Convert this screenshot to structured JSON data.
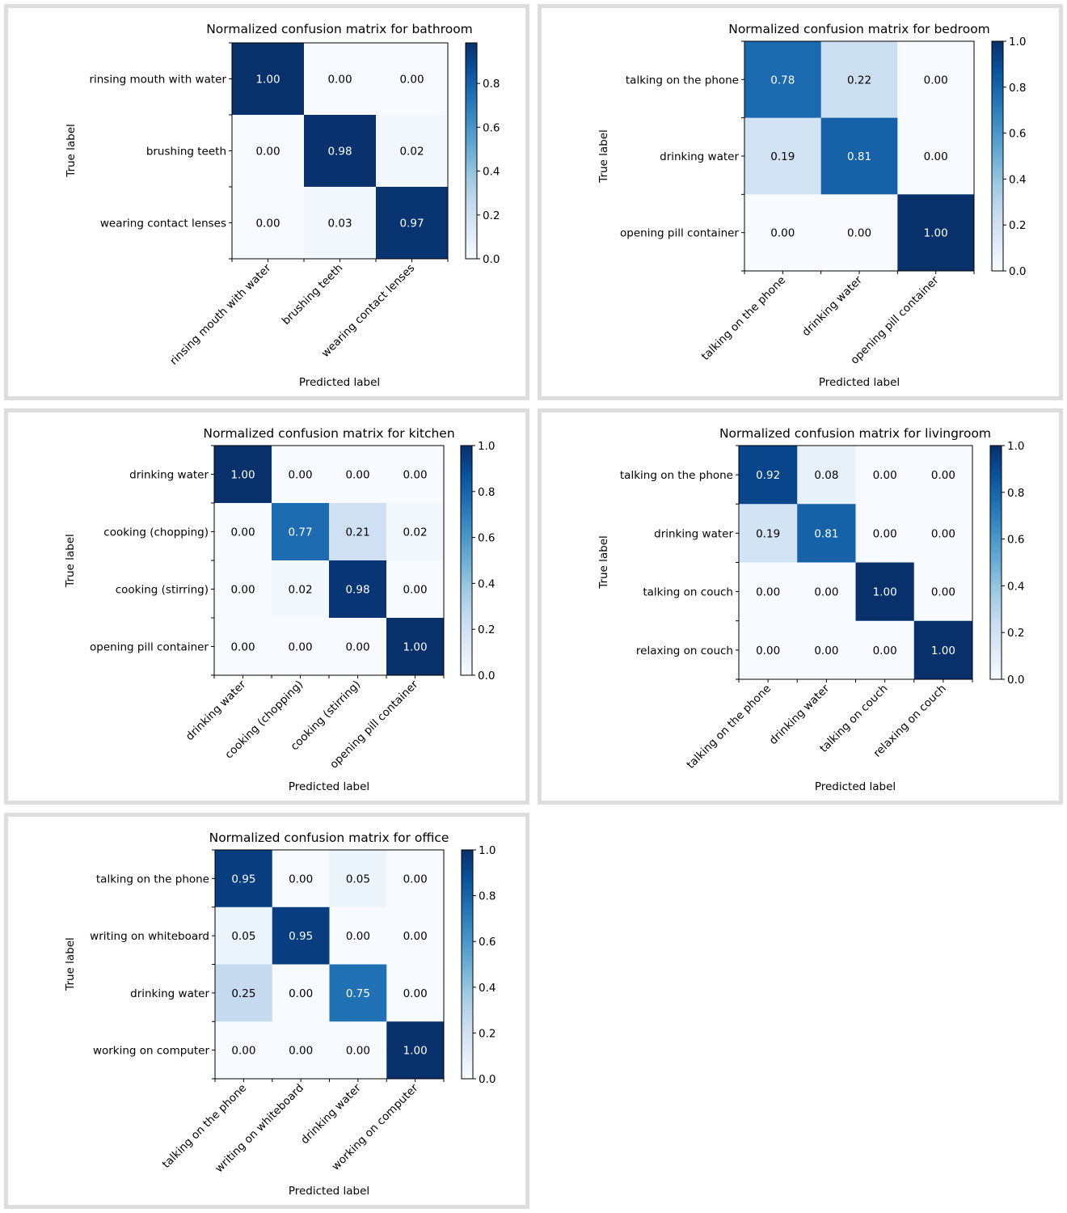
{
  "colorbar_ticks": [
    "0.0",
    "0.2",
    "0.4",
    "0.6",
    "0.8",
    "1.0"
  ],
  "colormap": [
    "#f7fbff",
    "#deebf7",
    "#c6dbef",
    "#9ecae1",
    "#6baed6",
    "#4292c6",
    "#2171b5",
    "#08519c",
    "#08306b"
  ],
  "chart_data": [
    {
      "type": "heatmap",
      "title": "Normalized confusion matrix for bathroom",
      "xlabel": "Predicted label",
      "ylabel": "True label",
      "classes": [
        "rinsing mouth with water",
        "brushing teeth",
        "wearing contact lenses"
      ],
      "values": [
        [
          1.0,
          0.0,
          0.0
        ],
        [
          0.0,
          0.98,
          0.02
        ],
        [
          0.0,
          0.03,
          0.97
        ]
      ],
      "labels": [
        [
          "1.00",
          "0.00",
          "0.00"
        ],
        [
          "0.00",
          "0.98",
          "0.02"
        ],
        [
          "0.00",
          "0.03",
          "0.97"
        ]
      ],
      "colorbar_range": [
        0,
        0.985
      ]
    },
    {
      "type": "heatmap",
      "title": "Normalized confusion matrix for bedroom",
      "xlabel": "Predicted label",
      "ylabel": "True label",
      "classes": [
        "talking on the phone",
        "drinking water",
        "opening pill container"
      ],
      "values": [
        [
          0.78,
          0.22,
          0.0
        ],
        [
          0.19,
          0.81,
          0.0
        ],
        [
          0.0,
          0.0,
          1.0
        ]
      ],
      "labels": [
        [
          "0.78",
          "0.22",
          "0.00"
        ],
        [
          "0.19",
          "0.81",
          "0.00"
        ],
        [
          "0.00",
          "0.00",
          "1.00"
        ]
      ],
      "colorbar_range": [
        0,
        1
      ]
    },
    {
      "type": "heatmap",
      "title": "Normalized confusion matrix for kitchen",
      "xlabel": "Predicted label",
      "ylabel": "True label",
      "classes": [
        "drinking water",
        "cooking (chopping)",
        "cooking (stirring)",
        "opening pill container"
      ],
      "values": [
        [
          1.0,
          0.0,
          0.0,
          0.0
        ],
        [
          0.0,
          0.77,
          0.21,
          0.02
        ],
        [
          0.0,
          0.02,
          0.98,
          0.0
        ],
        [
          0.0,
          0.0,
          0.0,
          1.0
        ]
      ],
      "labels": [
        [
          "1.00",
          "0.00",
          "0.00",
          "0.00"
        ],
        [
          "0.00",
          "0.77",
          "0.21",
          "0.02"
        ],
        [
          "0.00",
          "0.02",
          "0.98",
          "0.00"
        ],
        [
          "0.00",
          "0.00",
          "0.00",
          "1.00"
        ]
      ],
      "colorbar_range": [
        0,
        1
      ]
    },
    {
      "type": "heatmap",
      "title": "Normalized confusion matrix for livingroom",
      "xlabel": "Predicted label",
      "ylabel": "True label",
      "classes": [
        "talking on the phone",
        "drinking water",
        "talking on couch",
        "relaxing on couch"
      ],
      "values": [
        [
          0.92,
          0.08,
          0.0,
          0.0
        ],
        [
          0.19,
          0.81,
          0.0,
          0.0
        ],
        [
          0.0,
          0.0,
          1.0,
          0.0
        ],
        [
          0.0,
          0.0,
          0.0,
          1.0
        ]
      ],
      "labels": [
        [
          "0.92",
          "0.08",
          "0.00",
          "0.00"
        ],
        [
          "0.19",
          "0.81",
          "0.00",
          "0.00"
        ],
        [
          "0.00",
          "0.00",
          "1.00",
          "0.00"
        ],
        [
          "0.00",
          "0.00",
          "0.00",
          "1.00"
        ]
      ],
      "colorbar_range": [
        0,
        1
      ]
    },
    {
      "type": "heatmap",
      "title": "Normalized confusion matrix for office",
      "xlabel": "Predicted label",
      "ylabel": "True label",
      "classes": [
        "talking on the phone",
        "writing on whiteboard",
        "drinking water",
        "working on computer"
      ],
      "values": [
        [
          0.95,
          0.0,
          0.05,
          0.0
        ],
        [
          0.05,
          0.95,
          0.0,
          0.0
        ],
        [
          0.25,
          0.0,
          0.75,
          0.0
        ],
        [
          0.0,
          0.0,
          0.0,
          1.0
        ]
      ],
      "labels": [
        [
          "0.95",
          "0.00",
          "0.05",
          "0.00"
        ],
        [
          "0.05",
          "0.95",
          "0.00",
          "0.00"
        ],
        [
          "0.25",
          "0.00",
          "0.75",
          "0.00"
        ],
        [
          "0.00",
          "0.00",
          "0.00",
          "1.00"
        ]
      ],
      "colorbar_range": [
        0,
        1
      ]
    }
  ]
}
